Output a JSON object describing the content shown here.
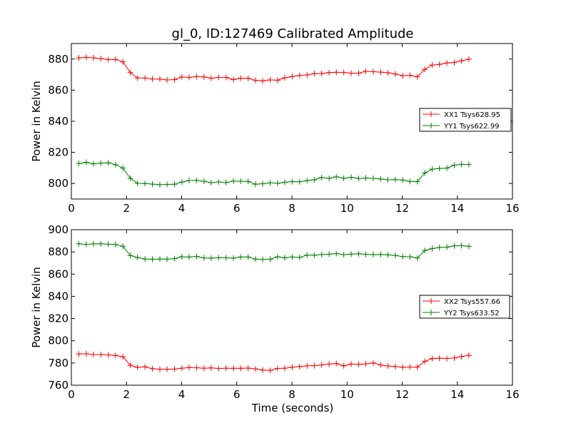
{
  "figure": {
    "title": "gl_0, ID:127469 Calibrated Amplitude",
    "xlabel": "Time (seconds)"
  },
  "chart_data": [
    {
      "type": "line",
      "title": "gl_0, ID:127469 Calibrated Amplitude",
      "xlabel": "",
      "ylabel": "Power in Kelvin",
      "xlim": [
        0,
        16
      ],
      "ylim": [
        790,
        890
      ],
      "xticks": [
        0,
        2,
        4,
        6,
        8,
        10,
        12,
        14,
        16
      ],
      "yticks": [
        800,
        820,
        840,
        860,
        880
      ],
      "legend_position": "center-right",
      "grid": false,
      "series": [
        {
          "name": "XX1 Tsys628.95",
          "color": "#ff0000",
          "marker": "+",
          "x": [
            0.27,
            0.54,
            0.8,
            1.07,
            1.34,
            1.6,
            1.87,
            2.14,
            2.4,
            2.67,
            2.94,
            3.21,
            3.47,
            3.74,
            4.01,
            4.27,
            4.54,
            4.81,
            5.07,
            5.34,
            5.61,
            5.88,
            6.14,
            6.41,
            6.68,
            6.94,
            7.21,
            7.48,
            7.74,
            8.01,
            8.28,
            8.55,
            8.81,
            9.08,
            9.35,
            9.61,
            9.88,
            10.15,
            10.42,
            10.68,
            10.95,
            11.22,
            11.48,
            11.75,
            12.02,
            12.28,
            12.55,
            12.82,
            13.09,
            13.35,
            13.62,
            13.89,
            14.15,
            14.42
          ],
          "values": [
            880.7,
            881.1,
            880.8,
            880.3,
            879.7,
            879.8,
            878.2,
            871.3,
            867.8,
            867.8,
            867.2,
            867.1,
            866.6,
            866.8,
            868.5,
            868.2,
            868.7,
            868.5,
            867.7,
            868.2,
            868.2,
            866.8,
            867.7,
            867.6,
            866.3,
            866,
            866.6,
            866.4,
            867.9,
            868.8,
            869.5,
            869.8,
            870.6,
            870.6,
            871.3,
            871.5,
            871.4,
            870.9,
            870.9,
            872.1,
            871.9,
            871.6,
            871.2,
            870.4,
            869.3,
            869.6,
            868.6,
            873.4,
            876.2,
            876.6,
            877.5,
            877.8,
            878.9,
            879.9
          ]
        },
        {
          "name": "YY1 Tsys622.99",
          "color": "#008000",
          "marker": "+",
          "x": [
            0.27,
            0.54,
            0.8,
            1.07,
            1.34,
            1.6,
            1.87,
            2.14,
            2.4,
            2.67,
            2.94,
            3.21,
            3.47,
            3.74,
            4.01,
            4.27,
            4.54,
            4.81,
            5.07,
            5.34,
            5.61,
            5.88,
            6.14,
            6.41,
            6.68,
            6.94,
            7.21,
            7.48,
            7.74,
            8.01,
            8.28,
            8.55,
            8.81,
            9.08,
            9.35,
            9.61,
            9.88,
            10.15,
            10.42,
            10.68,
            10.95,
            11.22,
            11.48,
            11.75,
            12.02,
            12.28,
            12.55,
            12.82,
            13.09,
            13.35,
            13.62,
            13.89,
            14.15,
            14.42
          ],
          "values": [
            812.8,
            813.6,
            812.6,
            813.1,
            813.3,
            812.1,
            809.9,
            803.3,
            800.1,
            800,
            799.6,
            799.2,
            799.4,
            799.5,
            800.9,
            801.9,
            802,
            801.4,
            800.5,
            801,
            800.6,
            801.5,
            801.4,
            801.3,
            799.5,
            799.8,
            800.4,
            800.1,
            800.8,
            801.2,
            801.1,
            801.8,
            802.4,
            803.8,
            803.3,
            804.3,
            803.3,
            804,
            803.2,
            803.5,
            803.3,
            802.9,
            802.4,
            802.5,
            802.2,
            801.3,
            801.2,
            806.8,
            809.2,
            809.6,
            809.9,
            811.8,
            812.3,
            812.2
          ]
        }
      ]
    },
    {
      "type": "line",
      "title": "",
      "xlabel": "Time (seconds)",
      "ylabel": "Power in Kelvin",
      "xlim": [
        0,
        16
      ],
      "ylim": [
        760,
        900
      ],
      "xticks": [
        0,
        2,
        4,
        6,
        8,
        10,
        12,
        14,
        16
      ],
      "yticks": [
        760,
        780,
        800,
        820,
        840,
        860,
        880,
        900
      ],
      "legend_position": "center-right",
      "grid": false,
      "series": [
        {
          "name": "XX2 Tsys557.66",
          "color": "#ff0000",
          "marker": "+",
          "x": [
            0.27,
            0.54,
            0.8,
            1.07,
            1.34,
            1.6,
            1.87,
            2.14,
            2.4,
            2.67,
            2.94,
            3.21,
            3.47,
            3.74,
            4.01,
            4.27,
            4.54,
            4.81,
            5.07,
            5.34,
            5.61,
            5.88,
            6.14,
            6.41,
            6.68,
            6.94,
            7.21,
            7.48,
            7.74,
            8.01,
            8.28,
            8.55,
            8.81,
            9.08,
            9.35,
            9.61,
            9.88,
            10.15,
            10.42,
            10.68,
            10.95,
            11.22,
            11.48,
            11.75,
            12.02,
            12.28,
            12.55,
            12.82,
            13.09,
            13.35,
            13.62,
            13.89,
            14.15,
            14.42
          ],
          "values": [
            788.1,
            788.3,
            787.6,
            787.6,
            787.3,
            786.7,
            785.6,
            777.9,
            776.1,
            776.5,
            774.9,
            774.4,
            774.4,
            774.5,
            775.3,
            775.9,
            775.7,
            775.3,
            775.6,
            775.1,
            775.3,
            775.2,
            775.2,
            775.4,
            774.7,
            773.6,
            773.3,
            775.1,
            775.3,
            776.2,
            776.8,
            777.4,
            777.6,
            778.3,
            779,
            779.5,
            777.4,
            779,
            778.7,
            779.2,
            780.1,
            778.2,
            777.3,
            776.8,
            776.1,
            776.4,
            776.2,
            781.5,
            783.9,
            784.3,
            784.1,
            784.5,
            785.8,
            786.9
          ]
        },
        {
          "name": "YY2 Tsys633.52",
          "color": "#008000",
          "marker": "+",
          "x": [
            0.27,
            0.54,
            0.8,
            1.07,
            1.34,
            1.6,
            1.87,
            2.14,
            2.4,
            2.67,
            2.94,
            3.21,
            3.47,
            3.74,
            4.01,
            4.27,
            4.54,
            4.81,
            5.07,
            5.34,
            5.61,
            5.88,
            6.14,
            6.41,
            6.68,
            6.94,
            7.21,
            7.48,
            7.74,
            8.01,
            8.28,
            8.55,
            8.81,
            9.08,
            9.35,
            9.61,
            9.88,
            10.15,
            10.42,
            10.68,
            10.95,
            11.22,
            11.48,
            11.75,
            12.02,
            12.28,
            12.55,
            12.82,
            13.09,
            13.35,
            13.62,
            13.89,
            14.15,
            14.42
          ],
          "values": [
            887.3,
            886.8,
            887.2,
            887.3,
            886.9,
            886.7,
            885.1,
            876.7,
            875,
            873.6,
            873.4,
            873.6,
            873.5,
            873.9,
            875.6,
            875.4,
            875.9,
            874.6,
            874.4,
            874.8,
            874.7,
            874.4,
            875.4,
            875.4,
            873.5,
            873.3,
            873.4,
            875.6,
            874.7,
            875.4,
            875.1,
            877.1,
            877,
            877.6,
            877.9,
            878.5,
            877.5,
            878,
            878.3,
            877.8,
            877.6,
            877.7,
            877.4,
            876.8,
            875.8,
            875.6,
            874.5,
            881.3,
            883,
            884,
            884.3,
            885.4,
            885.6,
            885
          ]
        }
      ]
    }
  ]
}
